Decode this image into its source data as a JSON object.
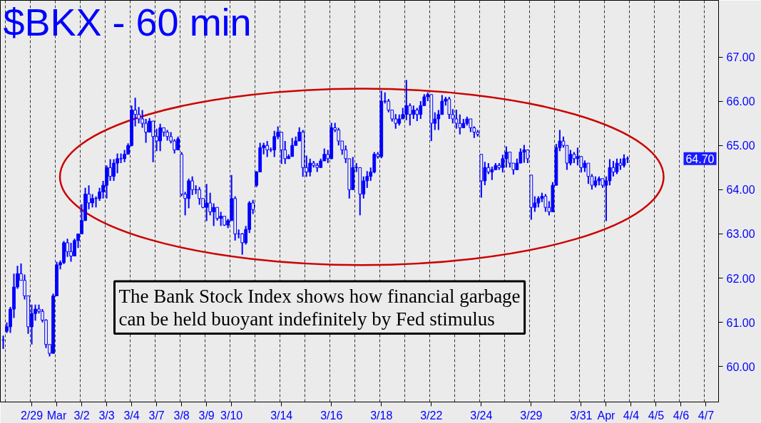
{
  "chart_data": {
    "type": "candlestick",
    "title": "$BKX - 60 min",
    "color": "#0000ff",
    "grid": "x",
    "ylim": [
      59.2,
      68.28
    ],
    "yticks": [
      {
        "value": 60,
        "label": "60.00"
      },
      {
        "value": 61,
        "label": "61.00"
      },
      {
        "value": 62,
        "label": "62.00"
      },
      {
        "value": 63,
        "label": "63.00"
      },
      {
        "value": 64,
        "label": "64.00"
      },
      {
        "value": 65,
        "label": "65.00"
      },
      {
        "value": 66,
        "label": "66.00"
      },
      {
        "value": 67,
        "label": "67.00"
      }
    ],
    "annotations": [
      "The Bank Stock Index shows how financial garbage\ncan be held buoyant indefinitely by Fed stimulus",
      "64.70"
    ],
    "categories": [
      null,
      null,
      null,
      null,
      null,
      null,
      null,
      null,
      "2/29",
      null,
      null,
      null,
      null,
      null,
      null,
      "Mar",
      null,
      null,
      null,
      null,
      null,
      null,
      "3/2",
      null,
      null,
      null,
      null,
      null,
      null,
      "3/3",
      null,
      null,
      null,
      null,
      null,
      null,
      "3/4",
      null,
      null,
      null,
      null,
      null,
      null,
      "3/7",
      null,
      null,
      null,
      null,
      null,
      null,
      "3/8",
      null,
      null,
      null,
      null,
      null,
      null,
      "3/9",
      null,
      null,
      null,
      null,
      null,
      null,
      "3/10",
      null,
      null,
      null,
      null,
      null,
      null,
      null,
      null,
      null,
      null,
      null,
      null,
      null,
      "3/14",
      null,
      null,
      null,
      null,
      null,
      null,
      null,
      null,
      null,
      null,
      null,
      null,
      null,
      "3/16",
      null,
      null,
      null,
      null,
      null,
      null,
      null,
      null,
      null,
      null,
      null,
      null,
      null,
      "3/18",
      null,
      null,
      null,
      null,
      null,
      null,
      null,
      null,
      null,
      null,
      null,
      null,
      null,
      "3/22",
      null,
      null,
      null,
      null,
      null,
      null,
      null,
      null,
      null,
      null,
      null,
      null,
      null,
      "3/24",
      null,
      null,
      null,
      null,
      null,
      null,
      null,
      null,
      null,
      null,
      null,
      null,
      null,
      "3/29",
      null,
      null,
      null,
      null,
      null,
      null,
      null,
      null,
      null,
      null,
      null,
      null,
      null,
      "3/31",
      null,
      null,
      null,
      null,
      null,
      null,
      "Apr",
      null,
      null,
      null,
      null,
      null,
      null,
      "4/4",
      null,
      null,
      null,
      null,
      null,
      null,
      "4/5",
      null,
      null,
      null,
      null,
      null,
      null,
      "4/6",
      null,
      null,
      null,
      null,
      null,
      null,
      "4/7",
      null,
      null,
      null
    ],
    "ohlc": [
      [
        60.6,
        60.7,
        60.4,
        60.6
      ],
      [
        60.8,
        61.0,
        60.76,
        60.9
      ],
      [
        60.9,
        61.35,
        60.76,
        61.3
      ],
      [
        61.3,
        62.1,
        61.1,
        61.8
      ],
      [
        61.8,
        62.28,
        61.76,
        62.1
      ],
      [
        62.1,
        62.33,
        61.95,
        61.95
      ],
      [
        61.95,
        62.08,
        61.52,
        61.6
      ],
      [
        61.6,
        61.6,
        60.74,
        60.9
      ],
      [
        60.9,
        61.4,
        60.5,
        61.2
      ],
      [
        61.2,
        61.4,
        61.04,
        61.3
      ],
      [
        61.3,
        61.4,
        61.2,
        61.25
      ],
      [
        61.25,
        61.3,
        61.0,
        61.05
      ],
      [
        61.05,
        61.07,
        60.42,
        60.5
      ],
      [
        60.5,
        60.5,
        60.23,
        60.3
      ],
      [
        60.3,
        61.65,
        60.3,
        61.6
      ],
      [
        61.6,
        62.37,
        61.6,
        62.3
      ],
      [
        62.3,
        62.4,
        62.2,
        62.35
      ],
      [
        62.35,
        62.84,
        62.32,
        62.8
      ],
      [
        62.8,
        62.89,
        62.48,
        62.6
      ],
      [
        62.6,
        62.8,
        62.37,
        62.5
      ],
      [
        62.5,
        62.89,
        62.5,
        62.85
      ],
      [
        62.85,
        63.0,
        62.68,
        63.0
      ],
      [
        63.0,
        63.67,
        63.0,
        63.3
      ],
      [
        63.3,
        64.04,
        63.3,
        63.9
      ],
      [
        63.9,
        64.1,
        63.56,
        63.7
      ],
      [
        63.7,
        63.9,
        63.6,
        63.8
      ],
      [
        63.8,
        63.85,
        63.6,
        63.8
      ],
      [
        63.8,
        64.04,
        63.75,
        63.95
      ],
      [
        63.95,
        64.2,
        63.8,
        64.1
      ],
      [
        64.1,
        64.55,
        63.8,
        64.5
      ],
      [
        64.5,
        64.69,
        64.2,
        64.3
      ],
      [
        64.3,
        64.69,
        64.2,
        64.6
      ],
      [
        64.6,
        64.82,
        64.37,
        64.7
      ],
      [
        64.7,
        64.82,
        64.6,
        64.7
      ],
      [
        64.7,
        64.9,
        64.62,
        64.8
      ],
      [
        64.8,
        65.05,
        64.8,
        65.0
      ],
      [
        65.0,
        65.9,
        64.98,
        65.8
      ],
      [
        65.8,
        66.08,
        65.43,
        65.7
      ],
      [
        65.7,
        65.87,
        65.5,
        65.6
      ],
      [
        65.6,
        65.8,
        65.4,
        65.5
      ],
      [
        65.5,
        65.6,
        65.06,
        65.3
      ],
      [
        65.3,
        65.62,
        65.3,
        65.55
      ],
      [
        65.55,
        65.55,
        64.62,
        65.2
      ],
      [
        65.2,
        65.38,
        64.87,
        65.1
      ],
      [
        65.1,
        65.49,
        64.87,
        65.4
      ],
      [
        65.4,
        65.4,
        65.2,
        65.3
      ],
      [
        65.3,
        65.35,
        65.11,
        65.2
      ],
      [
        65.2,
        65.3,
        65.05,
        65.1
      ],
      [
        65.1,
        65.14,
        64.82,
        64.9
      ],
      [
        64.9,
        65.2,
        64.9,
        65.15
      ],
      [
        64.8,
        64.85,
        63.85,
        63.9
      ],
      [
        63.9,
        63.95,
        63.42,
        63.8
      ],
      [
        63.8,
        64.25,
        63.58,
        64.2
      ],
      [
        64.2,
        64.3,
        63.88,
        64.0
      ],
      [
        64.0,
        64.1,
        63.9,
        64.0
      ],
      [
        64.0,
        64.06,
        63.66,
        63.8
      ],
      [
        63.8,
        63.8,
        63.58,
        63.6
      ],
      [
        63.6,
        64.13,
        63.29,
        63.7
      ],
      [
        63.7,
        63.93,
        63.42,
        63.5
      ],
      [
        63.5,
        63.69,
        63.18,
        63.6
      ],
      [
        63.6,
        63.6,
        63.3,
        63.35
      ],
      [
        63.35,
        63.5,
        63.18,
        63.4
      ],
      [
        63.4,
        63.4,
        63.18,
        63.2
      ],
      [
        63.2,
        63.34,
        63.13,
        63.3
      ],
      [
        63.3,
        64.33,
        63.3,
        63.8
      ],
      [
        63.8,
        63.85,
        62.85,
        63.0
      ],
      [
        63.0,
        63.1,
        62.9,
        63.0
      ],
      [
        63.0,
        63.02,
        62.53,
        62.8
      ],
      [
        62.8,
        63.18,
        62.76,
        63.1
      ],
      [
        63.1,
        63.74,
        63.02,
        63.7
      ],
      [
        63.7,
        63.77,
        63.45,
        63.55
      ],
      [
        64.1,
        64.42,
        64.06,
        64.4
      ],
      [
        64.4,
        65.06,
        64.4,
        64.95
      ],
      [
        64.95,
        65.06,
        64.8,
        65.0
      ],
      [
        65.0,
        65.1,
        64.74,
        64.9
      ],
      [
        64.9,
        64.95,
        64.85,
        64.9
      ],
      [
        64.9,
        65.33,
        64.74,
        65.2
      ],
      [
        65.2,
        65.43,
        65.14,
        65.3
      ],
      [
        65.3,
        65.3,
        64.58,
        64.9
      ],
      [
        64.9,
        65.1,
        64.58,
        64.7
      ],
      [
        64.7,
        64.8,
        64.7,
        64.75
      ],
      [
        64.75,
        65.17,
        64.75,
        65.0
      ],
      [
        65.0,
        65.2,
        65.0,
        65.1
      ],
      [
        65.1,
        65.41,
        65.1,
        65.3
      ],
      [
        65.3,
        65.35,
        64.29,
        64.5
      ],
      [
        64.5,
        64.77,
        64.29,
        64.4
      ],
      [
        64.4,
        64.7,
        64.3,
        64.6
      ],
      [
        64.6,
        64.65,
        64.5,
        64.55
      ],
      [
        64.55,
        64.6,
        64.4,
        64.5
      ],
      [
        64.5,
        64.7,
        64.5,
        64.65
      ],
      [
        64.65,
        64.93,
        64.65,
        64.8
      ],
      [
        64.8,
        64.9,
        64.6,
        64.7
      ],
      [
        64.7,
        65.51,
        64.69,
        65.4
      ],
      [
        65.4,
        65.51,
        65.3,
        65.35
      ],
      [
        65.35,
        65.4,
        65.0,
        65.1
      ],
      [
        65.1,
        65.1,
        64.79,
        64.9
      ],
      [
        64.9,
        65.0,
        64.6,
        64.7
      ],
      [
        64.7,
        64.7,
        63.8,
        64.0
      ],
      [
        64.0,
        64.74,
        64.0,
        64.5
      ],
      [
        64.5,
        64.6,
        64.4,
        64.5
      ],
      [
        64.5,
        64.5,
        63.42,
        63.9
      ],
      [
        63.9,
        64.3,
        63.8,
        64.2
      ],
      [
        64.2,
        64.42,
        64.04,
        64.3
      ],
      [
        64.3,
        64.5,
        64.2,
        64.4
      ],
      [
        64.4,
        64.85,
        64.37,
        64.8
      ],
      [
        64.8,
        64.85,
        64.7,
        64.75
      ],
      [
        64.75,
        66.24,
        64.71,
        66.0
      ],
      [
        66.0,
        66.2,
        65.95,
        66.0
      ],
      [
        66.0,
        66.05,
        65.75,
        65.8
      ],
      [
        65.8,
        65.8,
        65.54,
        65.6
      ],
      [
        65.6,
        65.71,
        65.38,
        65.5
      ],
      [
        65.5,
        65.7,
        65.45,
        65.6
      ],
      [
        65.6,
        65.85,
        65.6,
        65.7
      ],
      [
        65.7,
        66.48,
        65.57,
        65.9
      ],
      [
        65.9,
        65.95,
        65.45,
        65.7
      ],
      [
        65.7,
        65.9,
        65.6,
        65.8
      ],
      [
        65.8,
        65.85,
        65.55,
        65.7
      ],
      [
        65.7,
        66.0,
        65.6,
        65.9
      ],
      [
        65.9,
        66.16,
        65.9,
        66.1
      ],
      [
        66.1,
        66.2,
        66.0,
        66.15
      ],
      [
        66.15,
        66.15,
        65.1,
        65.5
      ],
      [
        65.5,
        65.75,
        65.35,
        65.6
      ],
      [
        65.6,
        65.8,
        65.35,
        65.7
      ],
      [
        65.7,
        66.14,
        65.7,
        66.0
      ],
      [
        66.0,
        66.1,
        65.9,
        66.05
      ],
      [
        66.05,
        66.1,
        65.6,
        65.7
      ],
      [
        65.7,
        65.82,
        65.5,
        65.6
      ],
      [
        65.6,
        65.81,
        65.38,
        65.5
      ],
      [
        65.5,
        65.7,
        65.25,
        65.4
      ],
      [
        65.4,
        65.6,
        65.4,
        65.5
      ],
      [
        65.5,
        65.65,
        65.45,
        65.6
      ],
      [
        65.6,
        65.6,
        65.3,
        65.4
      ],
      [
        65.4,
        65.43,
        65.17,
        65.3
      ],
      [
        65.3,
        65.35,
        65.2,
        65.25
      ],
      [
        64.8,
        64.8,
        63.82,
        64.2
      ],
      [
        64.2,
        64.63,
        64.1,
        64.5
      ],
      [
        64.5,
        64.6,
        64.35,
        64.4
      ],
      [
        64.4,
        64.52,
        64.22,
        64.45
      ],
      [
        64.45,
        64.6,
        64.45,
        64.55
      ],
      [
        64.55,
        64.6,
        64.45,
        64.5
      ],
      [
        64.5,
        64.79,
        64.39,
        64.7
      ],
      [
        64.7,
        64.98,
        64.5,
        64.85
      ],
      [
        64.85,
        64.85,
        64.5,
        64.6
      ],
      [
        64.6,
        64.6,
        64.34,
        64.45
      ],
      [
        64.45,
        64.7,
        64.45,
        64.6
      ],
      [
        64.6,
        64.93,
        64.6,
        64.85
      ],
      [
        64.85,
        65.01,
        64.61,
        64.9
      ],
      [
        64.9,
        64.9,
        64.6,
        64.7
      ],
      [
        64.33,
        64.33,
        63.32,
        63.6
      ],
      [
        63.6,
        63.85,
        63.5,
        63.7
      ],
      [
        63.7,
        63.85,
        63.6,
        63.8
      ],
      [
        63.8,
        63.93,
        63.72,
        63.85
      ],
      [
        63.85,
        63.9,
        63.5,
        63.6
      ],
      [
        63.6,
        63.74,
        63.42,
        63.5
      ],
      [
        63.5,
        64.17,
        63.5,
        64.1
      ],
      [
        64.1,
        65.03,
        64.1,
        64.95
      ],
      [
        64.95,
        65.35,
        64.87,
        65.1
      ],
      [
        65.1,
        65.2,
        64.95,
        65.0
      ],
      [
        65.0,
        65.0,
        64.45,
        64.6
      ],
      [
        64.6,
        64.9,
        64.55,
        64.8
      ],
      [
        64.8,
        64.85,
        64.6,
        64.7
      ],
      [
        64.7,
        64.95,
        64.55,
        64.75
      ],
      [
        64.75,
        64.75,
        64.39,
        64.5
      ],
      [
        64.5,
        64.66,
        64.4,
        64.6
      ],
      [
        64.6,
        64.6,
        64.13,
        64.3
      ],
      [
        64.3,
        64.35,
        64.0,
        64.1
      ],
      [
        64.1,
        64.3,
        64.05,
        64.2
      ],
      [
        64.2,
        64.3,
        64.1,
        64.25
      ],
      [
        64.25,
        64.25,
        64.04,
        64.1
      ],
      [
        64.1,
        64.3,
        63.29,
        64.2
      ],
      [
        64.2,
        64.69,
        64.1,
        64.5
      ],
      [
        64.5,
        64.65,
        64.3,
        64.4
      ],
      [
        64.4,
        64.7,
        64.35,
        64.6
      ],
      [
        64.6,
        64.7,
        64.45,
        64.55
      ],
      [
        64.55,
        64.8,
        64.5,
        64.7
      ],
      [
        64.7,
        64.75,
        64.6,
        64.7
      ],
      null,
      null,
      null,
      null,
      null,
      null,
      null,
      null,
      null,
      null,
      null,
      null,
      null,
      null,
      null,
      null,
      null,
      null,
      null,
      null,
      null,
      null,
      null,
      null,
      null
    ]
  }
}
